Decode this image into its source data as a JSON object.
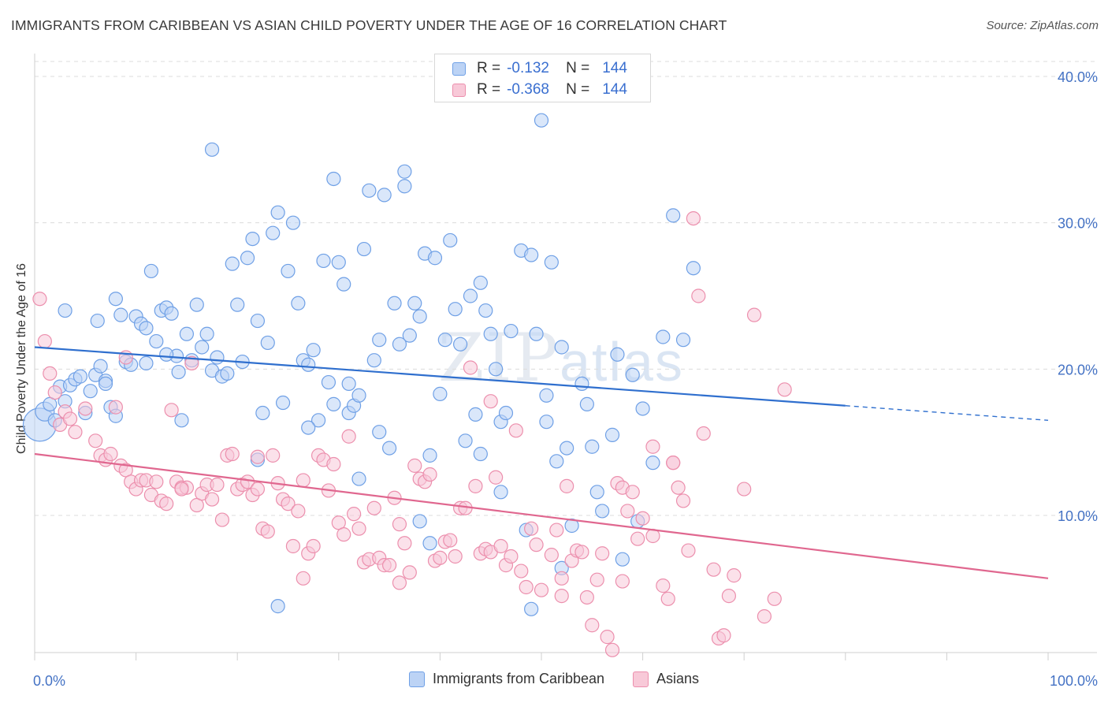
{
  "title": "IMMIGRANTS FROM CARIBBEAN VS ASIAN CHILD POVERTY UNDER THE AGE OF 16 CORRELATION CHART",
  "source": "Source: ZipAtlas.com",
  "watermark": {
    "zip": "ZIP",
    "atlas": "atlas"
  },
  "legend_stats": [
    {
      "r_label": "R =",
      "r_value": "-0.132",
      "n_label": "N =",
      "n_value": "144",
      "color": "#6fa0e6",
      "fill": "#bcd3f5"
    },
    {
      "r_label": "R =",
      "r_value": "-0.368",
      "n_label": "N =",
      "n_value": "144",
      "color": "#ec8fad",
      "fill": "#f8c9d8"
    }
  ],
  "chart_data": {
    "type": "scatter",
    "title": "IMMIGRANTS FROM CARIBBEAN VS ASIAN CHILD POVERTY UNDER THE AGE OF 16 CORRELATION CHART",
    "xlabel": "",
    "ylabel": "Child Poverty Under the Age of 16",
    "xlim": [
      0,
      100
    ],
    "ylim": [
      0,
      42
    ],
    "x_tick_labels": [
      "0.0%",
      "100.0%"
    ],
    "y_ticks": [
      10,
      20,
      30,
      40
    ],
    "y_tick_labels": [
      "10.0%",
      "20.0%",
      "30.0%",
      "40.0%"
    ],
    "grid": true,
    "legend_position": "bottom",
    "series": [
      {
        "name": "Immigrants from Caribbean",
        "color": "#6fa0e6",
        "fill": "#bcd3f5",
        "line_color": "#2f6fce",
        "trend": {
          "x0": 0,
          "y0": 21.5,
          "x1": 80,
          "y1": 17.5,
          "dash_to_x": 100,
          "dash_to_y": 16.5
        },
        "points": [
          [
            0.5,
            16.2
          ],
          [
            1,
            17.1
          ],
          [
            1.5,
            17.6
          ],
          [
            2,
            16.5
          ],
          [
            2.5,
            18.8
          ],
          [
            3,
            24
          ],
          [
            3.5,
            18.9
          ],
          [
            4,
            19.3
          ],
          [
            4.5,
            19.5
          ],
          [
            5,
            17
          ],
          [
            5.5,
            18.5
          ],
          [
            6,
            19.6
          ],
          [
            6.2,
            23.3
          ],
          [
            6.5,
            20.2
          ],
          [
            7,
            19.2
          ],
          [
            7.5,
            17.4
          ],
          [
            8,
            16.8
          ],
          [
            8,
            24.8
          ],
          [
            8.5,
            23.7
          ],
          [
            9,
            20.5
          ],
          [
            9.5,
            20.3
          ],
          [
            10,
            23.6
          ],
          [
            10.5,
            23.1
          ],
          [
            11,
            20.4
          ],
          [
            11.5,
            26.7
          ],
          [
            12,
            21.9
          ],
          [
            12.5,
            24
          ],
          [
            13,
            24.2
          ],
          [
            13.5,
            23.8
          ],
          [
            14,
            20.9
          ],
          [
            14.2,
            19.8
          ],
          [
            14.5,
            16.5
          ],
          [
            15,
            22.4
          ],
          [
            15.5,
            20.6
          ],
          [
            16,
            24.4
          ],
          [
            16.5,
            21.5
          ],
          [
            17,
            22.4
          ],
          [
            17.5,
            19.9
          ],
          [
            18,
            20.8
          ],
          [
            18.5,
            19.5
          ],
          [
            19,
            19.7
          ],
          [
            19.5,
            27.2
          ],
          [
            20,
            24.4
          ],
          [
            20.5,
            20.5
          ],
          [
            21,
            27.6
          ],
          [
            21.5,
            28.9
          ],
          [
            22,
            23.3
          ],
          [
            22.5,
            17
          ],
          [
            23,
            21.8
          ],
          [
            23.5,
            29.3
          ],
          [
            24,
            30.7
          ],
          [
            24.5,
            17.7
          ],
          [
            25,
            26.7
          ],
          [
            25.5,
            30
          ],
          [
            26,
            24.5
          ],
          [
            26.5,
            20.6
          ],
          [
            27,
            20.3
          ],
          [
            27.5,
            21.3
          ],
          [
            28,
            16.5
          ],
          [
            28.5,
            27.4
          ],
          [
            29,
            19.1
          ],
          [
            29.5,
            17.6
          ],
          [
            30,
            27.3
          ],
          [
            30.5,
            25.8
          ],
          [
            31,
            17
          ],
          [
            31.5,
            17.5
          ],
          [
            32,
            18.2
          ],
          [
            32.5,
            28.2
          ],
          [
            33,
            32.2
          ],
          [
            33.5,
            20.6
          ],
          [
            34,
            15.7
          ],
          [
            34.5,
            31.9
          ],
          [
            35,
            14.6
          ],
          [
            35.5,
            24.5
          ],
          [
            36,
            21.7
          ],
          [
            36.5,
            33.5
          ],
          [
            37,
            22.3
          ],
          [
            37.5,
            24.5
          ],
          [
            38,
            23.6
          ],
          [
            38.5,
            27.9
          ],
          [
            39,
            14.1
          ],
          [
            39.5,
            27.6
          ],
          [
            40,
            18.3
          ],
          [
            40.5,
            22
          ],
          [
            41,
            28.8
          ],
          [
            41.5,
            24.1
          ],
          [
            42,
            21.7
          ],
          [
            42.5,
            15.1
          ],
          [
            43,
            25
          ],
          [
            43.5,
            16.9
          ],
          [
            44,
            25.9
          ],
          [
            44.5,
            24
          ],
          [
            45,
            22.4
          ],
          [
            45.5,
            20
          ],
          [
            46,
            16.4
          ],
          [
            46.5,
            17
          ],
          [
            47,
            22.6
          ],
          [
            48,
            28.1
          ],
          [
            48.5,
            9
          ],
          [
            49,
            27.8
          ],
          [
            49.5,
            22.4
          ],
          [
            50,
            37
          ],
          [
            50.5,
            18.2
          ],
          [
            51,
            27.3
          ],
          [
            51.5,
            13.7
          ],
          [
            52,
            21.5
          ],
          [
            52.5,
            14.6
          ],
          [
            53,
            9.3
          ],
          [
            54,
            19
          ],
          [
            54.5,
            17.6
          ],
          [
            55,
            14.7
          ],
          [
            55.5,
            11.6
          ],
          [
            56,
            10.3
          ],
          [
            57,
            15.5
          ],
          [
            57.5,
            21
          ],
          [
            58,
            7
          ],
          [
            59,
            19.6
          ],
          [
            59.5,
            9.6
          ],
          [
            60,
            17.3
          ],
          [
            61,
            13.6
          ],
          [
            62,
            22.2
          ],
          [
            63,
            30.5
          ],
          [
            64,
            22
          ],
          [
            65,
            26.9
          ],
          [
            3,
            17.8
          ],
          [
            7,
            19
          ],
          [
            11,
            22.8
          ],
          [
            13,
            21
          ],
          [
            17.5,
            35
          ],
          [
            22,
            13.8
          ],
          [
            24,
            3.8
          ],
          [
            27,
            16
          ],
          [
            29.5,
            33
          ],
          [
            31,
            19
          ],
          [
            32,
            12.5
          ],
          [
            34,
            22
          ],
          [
            36.5,
            32.5
          ],
          [
            38,
            9.6
          ],
          [
            39,
            8.1
          ],
          [
            44,
            14.2
          ],
          [
            46,
            11.6
          ],
          [
            49,
            3.6
          ],
          [
            50.5,
            16.4
          ],
          [
            52,
            6.4
          ]
        ],
        "point_sizes": [
          {
            "index": 0,
            "r": 21
          },
          {
            "index": 1,
            "r": 12
          }
        ]
      },
      {
        "name": "Asians",
        "color": "#ec8fad",
        "fill": "#f8c9d8",
        "line_color": "#e0678f",
        "trend": {
          "x0": 0,
          "y0": 14.2,
          "x1": 100,
          "y1": 5.7
        },
        "points": [
          [
            0.5,
            24.8
          ],
          [
            1,
            21.9
          ],
          [
            1.5,
            19.7
          ],
          [
            2,
            18.4
          ],
          [
            2.5,
            16.2
          ],
          [
            3,
            17.1
          ],
          [
            3.5,
            16.6
          ],
          [
            4,
            15.7
          ],
          [
            5,
            17.3
          ],
          [
            6,
            15.1
          ],
          [
            6.5,
            14.1
          ],
          [
            7,
            13.8
          ],
          [
            7.5,
            14.2
          ],
          [
            8,
            17.4
          ],
          [
            8.5,
            13.4
          ],
          [
            9,
            13.1
          ],
          [
            9.5,
            12.3
          ],
          [
            10,
            11.8
          ],
          [
            10.5,
            12.4
          ],
          [
            11,
            12.4
          ],
          [
            11.5,
            11.4
          ],
          [
            12,
            12.3
          ],
          [
            12.5,
            11
          ],
          [
            13,
            10.8
          ],
          [
            13.5,
            17.2
          ],
          [
            14,
            12.3
          ],
          [
            14.5,
            11.9
          ],
          [
            15,
            11.9
          ],
          [
            15.5,
            20.4
          ],
          [
            16,
            10.7
          ],
          [
            16.5,
            11.5
          ],
          [
            17,
            12.1
          ],
          [
            17.5,
            11.1
          ],
          [
            18,
            12.1
          ],
          [
            18.5,
            9.7
          ],
          [
            19,
            14.1
          ],
          [
            19.5,
            14.2
          ],
          [
            20,
            11.8
          ],
          [
            20.5,
            12.1
          ],
          [
            21,
            12.3
          ],
          [
            21.5,
            11.4
          ],
          [
            22,
            11.8
          ],
          [
            22.5,
            9.1
          ],
          [
            23,
            8.9
          ],
          [
            23.5,
            14.1
          ],
          [
            24,
            12.2
          ],
          [
            24.5,
            11.1
          ],
          [
            25,
            10.8
          ],
          [
            25.5,
            7.9
          ],
          [
            26,
            10.3
          ],
          [
            26.5,
            12.4
          ],
          [
            27,
            7.4
          ],
          [
            27.5,
            7.9
          ],
          [
            28,
            14.1
          ],
          [
            28.5,
            13.8
          ],
          [
            29,
            11.7
          ],
          [
            29.5,
            13.5
          ],
          [
            30,
            9.5
          ],
          [
            30.5,
            8.7
          ],
          [
            31,
            15.4
          ],
          [
            31.5,
            10.1
          ],
          [
            32,
            9.1
          ],
          [
            32.5,
            6.8
          ],
          [
            33,
            7
          ],
          [
            33.5,
            10.5
          ],
          [
            34,
            7.1
          ],
          [
            34.5,
            6.6
          ],
          [
            35,
            6.6
          ],
          [
            35.5,
            11.2
          ],
          [
            36,
            9.4
          ],
          [
            36.5,
            8.1
          ],
          [
            37,
            6.1
          ],
          [
            37.5,
            13.4
          ],
          [
            38,
            12.5
          ],
          [
            38.5,
            12.3
          ],
          [
            39,
            12.8
          ],
          [
            39.5,
            6.9
          ],
          [
            40,
            7.1
          ],
          [
            40.5,
            8.2
          ],
          [
            41,
            8.3
          ],
          [
            41.5,
            7.2
          ],
          [
            42,
            10.5
          ],
          [
            42.5,
            10.5
          ],
          [
            43,
            20.1
          ],
          [
            43.5,
            12
          ],
          [
            44,
            7.4
          ],
          [
            44.5,
            7.7
          ],
          [
            45,
            7.5
          ],
          [
            45.5,
            12.6
          ],
          [
            46,
            7.9
          ],
          [
            46.5,
            6.6
          ],
          [
            47,
            7.2
          ],
          [
            47.5,
            15.8
          ],
          [
            48,
            6.2
          ],
          [
            48.5,
            5.1
          ],
          [
            49,
            9.1
          ],
          [
            49.5,
            8
          ],
          [
            50,
            4.9
          ],
          [
            51,
            7.3
          ],
          [
            51.5,
            9
          ],
          [
            52,
            5.7
          ],
          [
            52.5,
            12
          ],
          [
            53,
            6.9
          ],
          [
            53.5,
            7.6
          ],
          [
            54,
            7.5
          ],
          [
            54.5,
            4.4
          ],
          [
            55,
            2.5
          ],
          [
            55.5,
            5.6
          ],
          [
            56,
            7.4
          ],
          [
            56.5,
            1.7
          ],
          [
            57,
            0.8
          ],
          [
            57.5,
            12.2
          ],
          [
            58,
            11.9
          ],
          [
            58.5,
            10.3
          ],
          [
            59,
            11.6
          ],
          [
            59.5,
            8.4
          ],
          [
            60,
            9.8
          ],
          [
            61,
            8.6
          ],
          [
            62,
            5.2
          ],
          [
            62.5,
            4.3
          ],
          [
            63,
            13.6
          ],
          [
            63.5,
            11.9
          ],
          [
            64,
            11
          ],
          [
            64.5,
            7.6
          ],
          [
            65,
            30.3
          ],
          [
            65.5,
            25
          ],
          [
            66,
            15.6
          ],
          [
            67,
            6.3
          ],
          [
            67.5,
            1.6
          ],
          [
            68,
            1.8
          ],
          [
            68.5,
            4.5
          ],
          [
            69,
            5.9
          ],
          [
            70,
            11.8
          ],
          [
            71,
            23.7
          ],
          [
            72,
            3.1
          ],
          [
            73,
            4.3
          ],
          [
            74,
            18.6
          ],
          [
            9,
            20.8
          ],
          [
            14.5,
            11.8
          ],
          [
            22,
            14
          ],
          [
            26.5,
            5.7
          ],
          [
            36,
            5.4
          ],
          [
            45,
            17.8
          ],
          [
            52,
            4.5
          ],
          [
            58,
            5.5
          ],
          [
            61,
            14.7
          ],
          [
            63,
            13.6
          ]
        ]
      }
    ]
  },
  "bottom_legend": [
    {
      "label": "Immigrants from Caribbean",
      "color": "#6fa0e6",
      "fill": "#bcd3f5"
    },
    {
      "label": "Asians",
      "color": "#ec8fad",
      "fill": "#f8c9d8"
    }
  ]
}
